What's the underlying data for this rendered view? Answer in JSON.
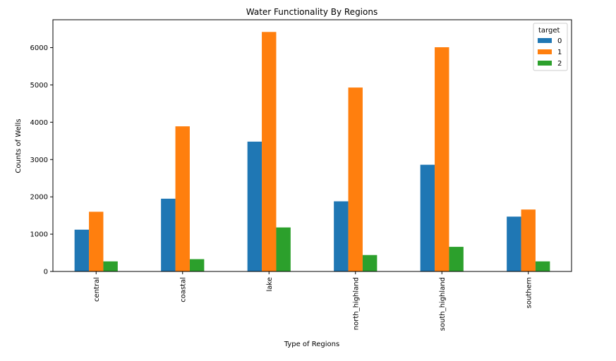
{
  "chart_data": {
    "type": "bar",
    "title": "Water Functionality By Regions",
    "xlabel": "Type of Regions",
    "ylabel": "Counts of Wells",
    "categories": [
      "central",
      "coastal",
      "lake",
      "north_highland",
      "south_highland",
      "southern"
    ],
    "series": [
      {
        "name": "0",
        "color": "#1f77b4",
        "values": [
          1120,
          1950,
          3480,
          1880,
          2860,
          1470
        ]
      },
      {
        "name": "1",
        "color": "#ff7f0e",
        "values": [
          1600,
          3890,
          6420,
          4930,
          6010,
          1660
        ]
      },
      {
        "name": "2",
        "color": "#2ca02c",
        "values": [
          270,
          330,
          1180,
          440,
          660,
          270
        ]
      }
    ],
    "yticks": [
      0,
      1000,
      2000,
      3000,
      4000,
      5000,
      6000
    ],
    "ylim": [
      0,
      6747
    ],
    "legend": {
      "title": "target",
      "position": "top-right"
    },
    "grid": false
  }
}
